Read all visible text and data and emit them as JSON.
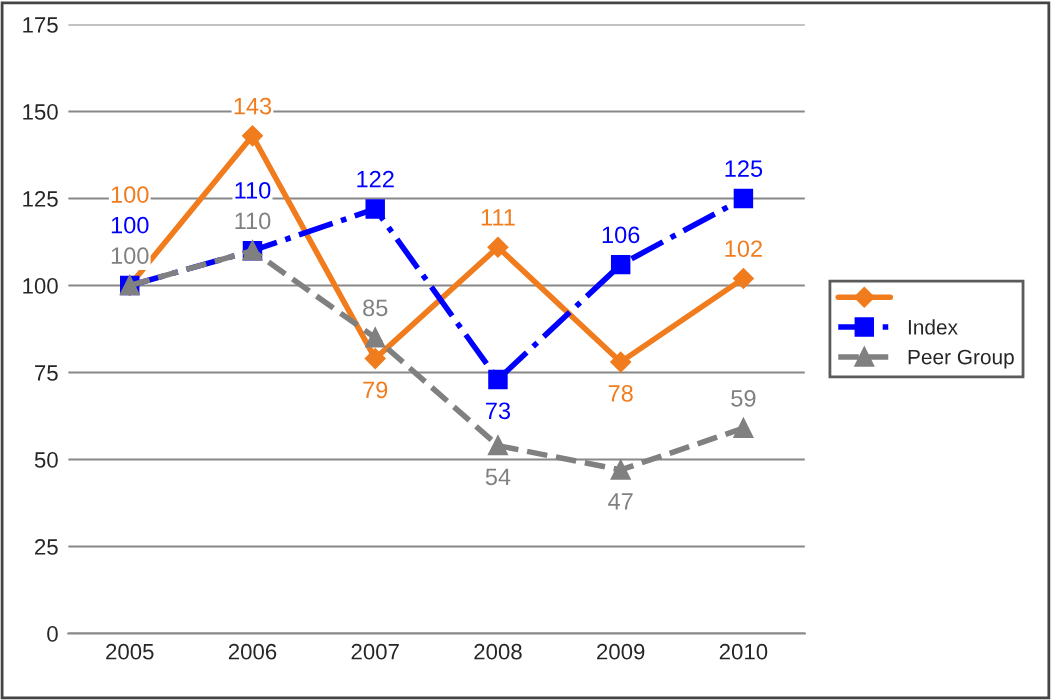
{
  "chart_data": {
    "type": "line",
    "categories": [
      "2005",
      "2006",
      "2007",
      "2008",
      "2009",
      "2010"
    ],
    "series": [
      {
        "color": "#f07c1e",
        "marker": "diamond",
        "line_style": "solid",
        "values": [
          100,
          143,
          79,
          111,
          78,
          102
        ]
      },
      {
        "name": "Index",
        "color": "#0000ff",
        "marker": "square",
        "line_style": "dashdot",
        "values": [
          100,
          110,
          122,
          73,
          106,
          125
        ]
      },
      {
        "name": "Peer Group",
        "color": "#808080",
        "marker": "triangle",
        "line_style": "dashed",
        "values": [
          100,
          110,
          85,
          54,
          47,
          59
        ]
      }
    ],
    "ylim": [
      0,
      175
    ],
    "yticks": [
      0,
      25,
      50,
      75,
      100,
      125,
      150,
      175
    ],
    "grid": "y",
    "legend": "right",
    "data_labels": true
  }
}
